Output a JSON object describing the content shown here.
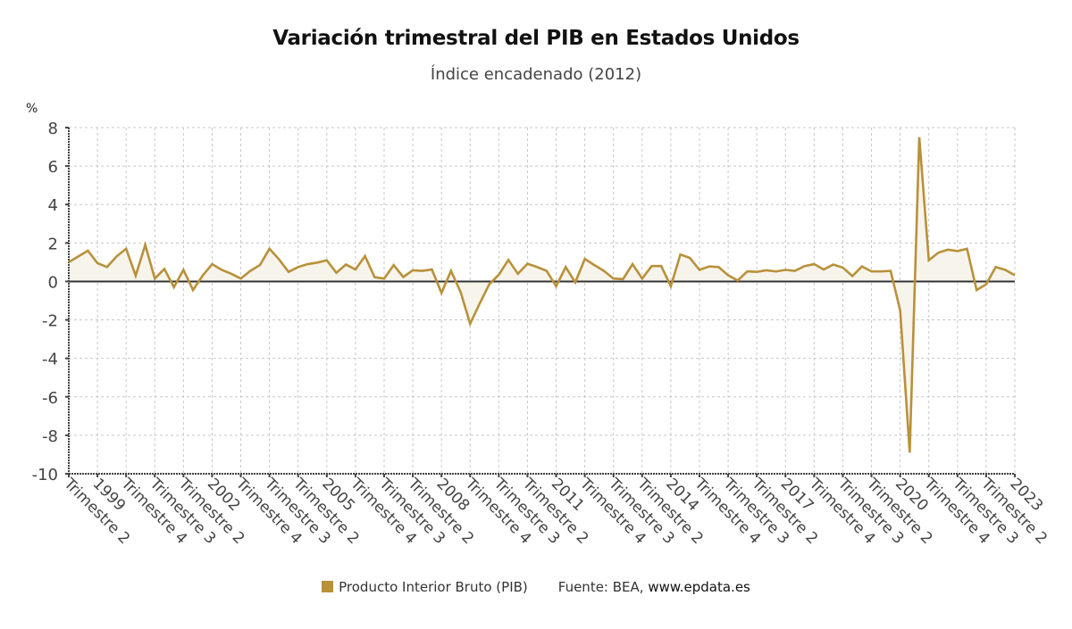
{
  "header": {
    "title": "Variación trimestral del PIB en Estados Unidos",
    "subtitle": "Índice encadenado (2012)"
  },
  "footer": {
    "legend_label": "Producto Interior Bruto (PIB)",
    "source_prefix": "Fuente: BEA,",
    "source_site": "www.epdata.es"
  },
  "colors": {
    "series": "#b8913a",
    "area": "#f7f4ec",
    "zero_line": "#333333",
    "grid": "#c8c8c8"
  },
  "chart_data": {
    "type": "line",
    "title": "Variación trimestral del PIB en Estados Unidos",
    "subtitle": "Índice encadenado (2012)",
    "ylabel": "%",
    "xlabel": "",
    "ylim": [
      -10,
      8
    ],
    "yticks": [
      8,
      6,
      4,
      2,
      0,
      -2,
      -4,
      -6,
      -8,
      -10
    ],
    "grid": true,
    "legend_position": "bottom-center",
    "x_start": "1998 Trimestre 2",
    "x_end": "2023 Trimestre 1",
    "x_tick_every_quarters": 3,
    "x_tick_labels": [
      "Trimestre 2",
      "1999",
      "Trimestre 4",
      "Trimestre 3",
      "Trimestre 2",
      "2002",
      "Trimestre 4",
      "Trimestre 3",
      "Trimestre 2",
      "2005",
      "Trimestre 4",
      "Trimestre 3",
      "Trimestre 2",
      "2008",
      "Trimestre 4",
      "Trimestre 3",
      "Trimestre 2",
      "2011",
      "Trimestre 4",
      "Trimestre 3",
      "Trimestre 2",
      "2014",
      "Trimestre 4",
      "Trimestre 3",
      "Trimestre 2",
      "2017",
      "Trimestre 4",
      "Trimestre 3",
      "Trimestre 2",
      "2020",
      "Trimestre 4",
      "Trimestre 3",
      "Trimestre 2",
      "2023"
    ],
    "series": [
      {
        "name": "Producto Interior Bruto (PIB)",
        "values": [
          1.0,
          1.3,
          1.6,
          0.95,
          0.75,
          1.3,
          1.7,
          0.3,
          1.9,
          0.15,
          0.65,
          -0.3,
          0.6,
          -0.45,
          0.3,
          0.9,
          0.6,
          0.4,
          0.15,
          0.55,
          0.85,
          1.7,
          1.15,
          0.5,
          0.75,
          0.9,
          0.98,
          1.1,
          0.45,
          0.88,
          0.62,
          1.32,
          0.22,
          0.15,
          0.85,
          0.23,
          0.58,
          0.55,
          0.62,
          -0.6,
          0.55,
          -0.55,
          -2.2,
          -1.15,
          -0.15,
          0.35,
          1.12,
          0.4,
          0.92,
          0.75,
          0.55,
          -0.25,
          0.75,
          -0.05,
          1.17,
          0.85,
          0.55,
          0.15,
          0.12,
          0.9,
          0.15,
          0.8,
          0.8,
          -0.25,
          1.4,
          1.22,
          0.6,
          0.78,
          0.75,
          0.32,
          0.05,
          0.52,
          0.5,
          0.58,
          0.52,
          0.6,
          0.55,
          0.8,
          0.9,
          0.62,
          0.88,
          0.72,
          0.28,
          0.78,
          0.52,
          0.52,
          0.55,
          -1.5,
          -8.9,
          7.5,
          1.1,
          1.5,
          1.65,
          1.58,
          1.7,
          -0.45,
          -0.15,
          0.75,
          0.6,
          0.32
        ]
      }
    ]
  }
}
